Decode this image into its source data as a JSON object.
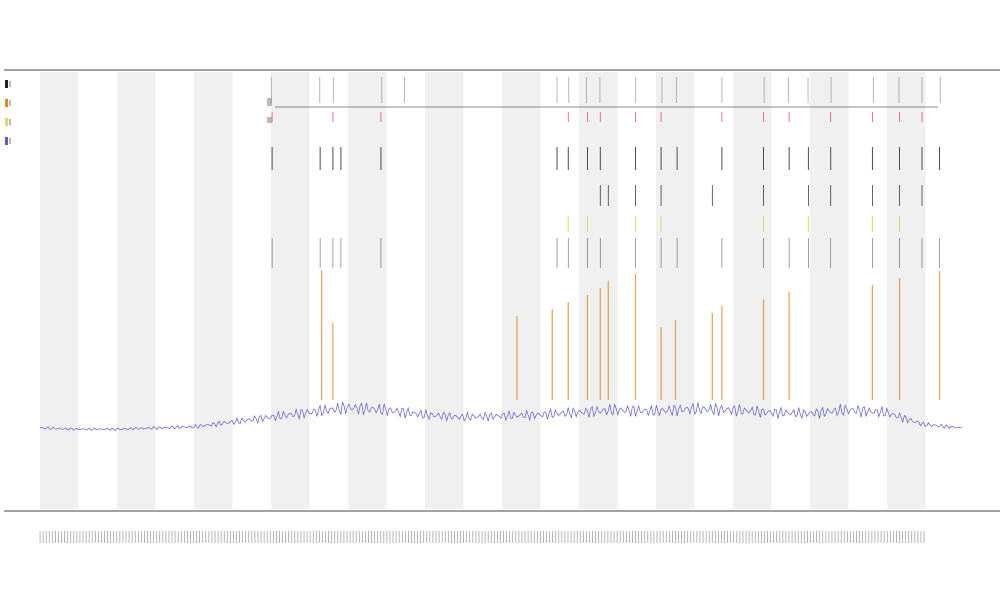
{
  "chart_data": {
    "type": "line",
    "title": "",
    "subtitle": "",
    "subtitle2": "",
    "xlabel": "",
    "ylabel": "",
    "grid": false,
    "legend_placement": "top-left",
    "bands": 24,
    "band_color": "#f0f0f0",
    "colors": {
      "main_line": "#5b5bd6",
      "orange": "#e08a1e",
      "yellow": "#d9d96a",
      "black": "#222222",
      "red": "#e04040",
      "grey": "#888888"
    },
    "series": [
      {
        "kind": "line",
        "color": "#5b5bd6",
        "x": [
          0,
          24,
          48,
          72,
          96,
          120,
          144,
          168,
          192,
          216,
          240,
          264,
          288,
          312,
          336,
          360,
          384,
          408,
          432,
          456,
          480,
          504,
          528,
          552,
          576
        ],
        "y": [
          0.05,
          0.04,
          0.04,
          0.05,
          0.06,
          0.1,
          0.14,
          0.18,
          0.22,
          0.2,
          0.16,
          0.14,
          0.15,
          0.16,
          0.18,
          0.2,
          0.19,
          0.21,
          0.2,
          0.18,
          0.17,
          0.2,
          0.18,
          0.08,
          0.05
        ]
      }
    ],
    "events": {
      "orange": [
        176,
        183,
        298,
        320,
        330,
        342,
        350,
        355,
        372,
        388,
        397,
        420,
        426,
        452,
        468,
        520,
        537,
        562
      ],
      "yellow": [
        330,
        342,
        372,
        388,
        452,
        480,
        520,
        537
      ],
      "black_top": [
        145,
        175,
        183,
        188,
        213,
        323,
        330,
        342,
        350,
        372,
        388,
        398,
        426,
        452,
        468,
        480,
        494,
        520,
        537,
        551,
        562
      ],
      "black_mid": [
        350,
        355,
        372,
        388,
        420,
        452,
        480,
        494,
        520,
        537,
        551
      ],
      "red": [
        145,
        183,
        213,
        330,
        342,
        350,
        372,
        388,
        426,
        452,
        468,
        494,
        520,
        537,
        551
      ],
      "grey_top": [
        145,
        175,
        183,
        213,
        228,
        323,
        330,
        342,
        350,
        372,
        388,
        398,
        426,
        452,
        468,
        480,
        494,
        520,
        537,
        551,
        562
      ]
    }
  }
}
